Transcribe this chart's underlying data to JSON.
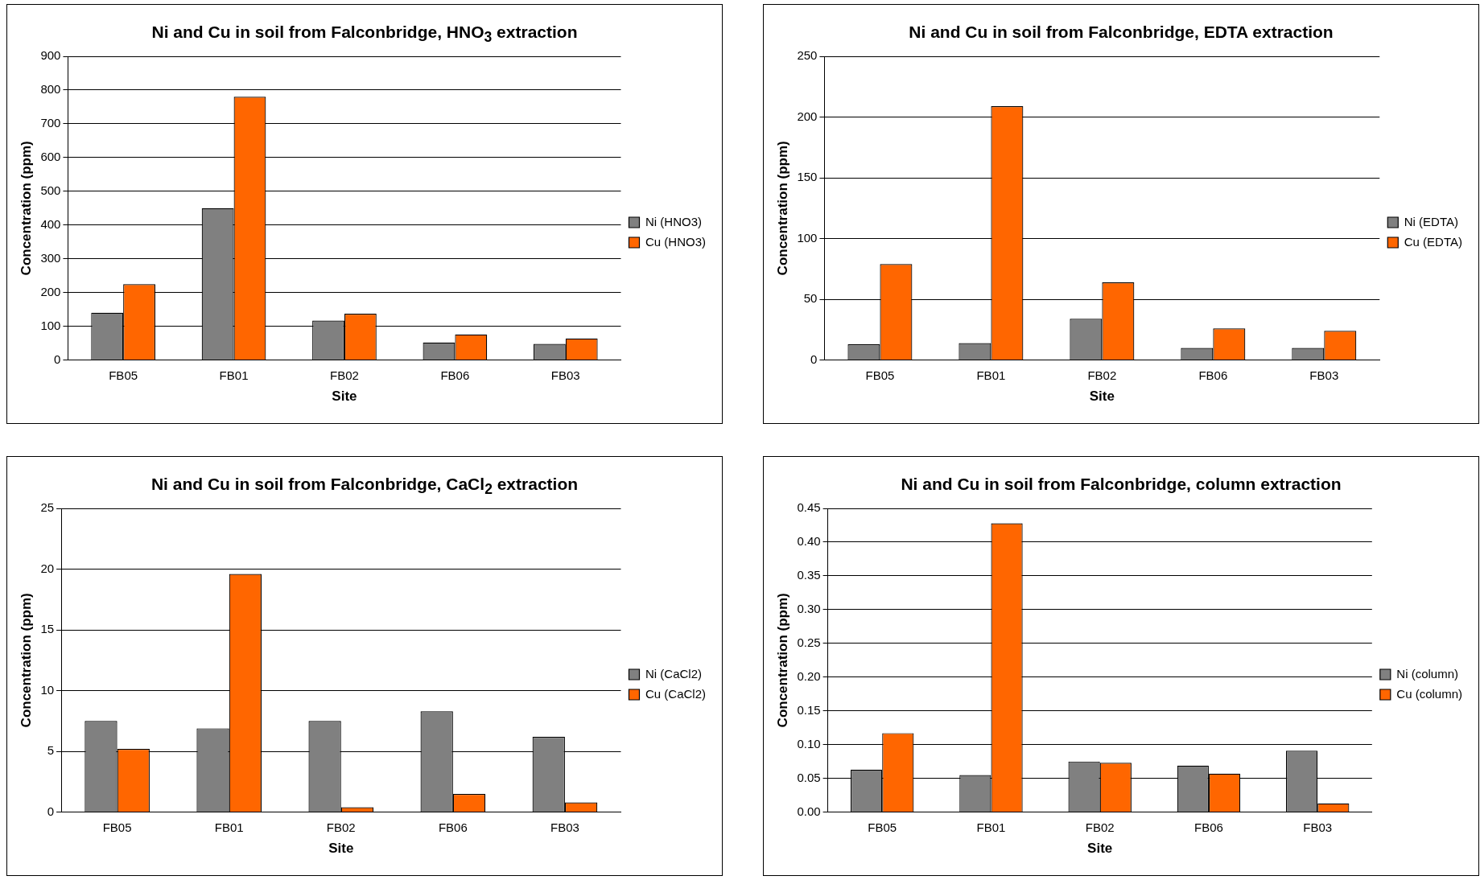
{
  "chart_data": [
    {
      "type": "bar",
      "title": "Ni and Cu in soil from Falconbridge, HNO$_{3}$ extraction",
      "xlabel": "Site",
      "ylabel": "Concentration (ppm)",
      "categories": [
        "FB05",
        "FB01",
        "FB02",
        "FB06",
        "FB03"
      ],
      "series": [
        {
          "name": "Ni (HNO3)",
          "color": "#808080",
          "values": [
            140,
            450,
            117,
            52,
            48
          ]
        },
        {
          "name": "Cu (HNO3)",
          "color": "#ff6600",
          "values": [
            225,
            780,
            137,
            76,
            64
          ]
        }
      ],
      "ylim": [
        0,
        900
      ],
      "yticks": [
        0,
        100,
        200,
        300,
        400,
        500,
        600,
        700,
        800,
        900
      ],
      "grid": "y",
      "legend": "right"
    },
    {
      "type": "bar",
      "title": "Ni and Cu in soil from Falconbridge, EDTA extraction",
      "xlabel": "Site",
      "ylabel": "Concentration (ppm)",
      "categories": [
        "FB05",
        "FB01",
        "FB02",
        "FB06",
        "FB03"
      ],
      "series": [
        {
          "name": "Ni (EDTA)",
          "color": "#808080",
          "values": [
            13,
            14,
            34,
            10,
            10
          ]
        },
        {
          "name": "Cu (EDTA)",
          "color": "#ff6600",
          "values": [
            79,
            209,
            64,
            26,
            24
          ]
        }
      ],
      "ylim": [
        0,
        250
      ],
      "yticks": [
        0,
        50,
        100,
        150,
        200,
        250
      ],
      "grid": "y",
      "legend": "right"
    },
    {
      "type": "bar",
      "title": "Ni and Cu in soil from Falconbridge, CaCl$_{2}$ extraction",
      "xlabel": "Site",
      "ylabel": "Concentration (ppm)",
      "categories": [
        "FB05",
        "FB01",
        "FB02",
        "FB06",
        "FB03"
      ],
      "series": [
        {
          "name": "Ni (CaCl2)",
          "color": "#808080",
          "values": [
            7.5,
            6.9,
            7.5,
            8.3,
            6.2
          ]
        },
        {
          "name": "Cu (CaCl2)",
          "color": "#ff6600",
          "values": [
            5.2,
            19.6,
            0.4,
            1.5,
            0.8
          ]
        }
      ],
      "ylim": [
        0,
        25
      ],
      "yticks": [
        0,
        5,
        10,
        15,
        20,
        25
      ],
      "grid": "y",
      "legend": "right"
    },
    {
      "type": "bar",
      "title": "Ni and Cu in soil from Falconbridge, column extraction",
      "xlabel": "Site",
      "ylabel": "Concentration (ppm)",
      "categories": [
        "FB05",
        "FB01",
        "FB02",
        "FB06",
        "FB03"
      ],
      "series": [
        {
          "name": "Ni (column)",
          "color": "#808080",
          "values": [
            0.063,
            0.055,
            0.075,
            0.069,
            0.091
          ]
        },
        {
          "name": "Cu (column)",
          "color": "#ff6600",
          "values": [
            0.117,
            0.428,
            0.073,
            0.057,
            0.013
          ]
        }
      ],
      "ylim": [
        0,
        0.45
      ],
      "yticks": [
        {
          "value": 0,
          "label": "0.00"
        },
        {
          "value": 0.05,
          "label": "0.05"
        },
        {
          "value": 0.1,
          "label": "0.10"
        },
        {
          "value": 0.15,
          "label": "0.15"
        },
        {
          "value": 0.2,
          "label": "0.20"
        },
        {
          "value": 0.25,
          "label": "0.25"
        },
        {
          "value": 0.3,
          "label": "0.30"
        },
        {
          "value": 0.35,
          "label": "0.35"
        },
        {
          "value": 0.4,
          "label": "0.40"
        },
        {
          "value": 0.45,
          "label": "0.45"
        }
      ],
      "grid": "y",
      "legend": "right"
    }
  ]
}
